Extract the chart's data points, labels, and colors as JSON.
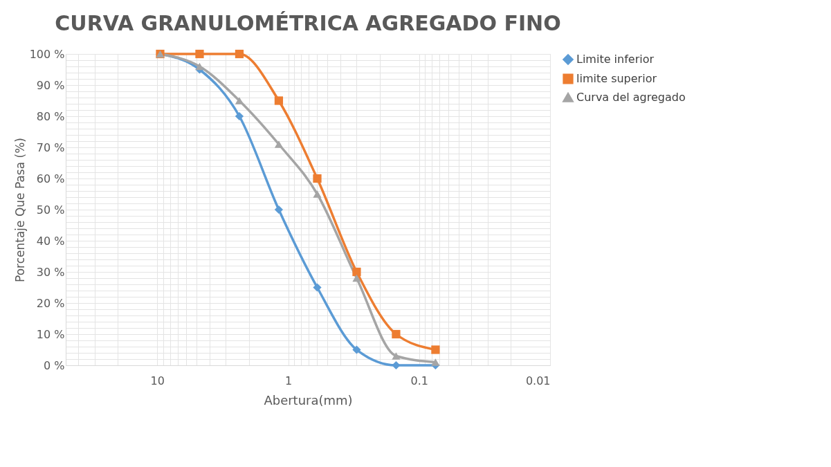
{
  "chart_data": {
    "type": "line",
    "title": "CURVA GRANULOMÉTRICA AGREGADO FINO",
    "xlabel": "Abertura(mm)",
    "ylabel": "Porcentaje Que Pasa (%)",
    "x": [
      9.5,
      4.75,
      2.36,
      1.18,
      0.6,
      0.3,
      0.15,
      0.075
    ],
    "series": [
      {
        "name": "Limite inferior",
        "color": "#5b9bd5",
        "marker": "diamond",
        "values": [
          100,
          95,
          80,
          50,
          25,
          5,
          0,
          0
        ]
      },
      {
        "name": "limite superior",
        "color": "#ed7d31",
        "marker": "square",
        "values": [
          100,
          100,
          100,
          85,
          60,
          30,
          10,
          5
        ]
      },
      {
        "name": "Curva del agregado",
        "color": "#a5a5a5",
        "marker": "triangle",
        "values": [
          100,
          96,
          85,
          71,
          55,
          28,
          3,
          1
        ]
      }
    ],
    "log": "x",
    "xlim": [
      50,
      0.01
    ],
    "xticks": [
      {
        "value": 50,
        "label": null
      },
      {
        "value": 40,
        "label": null
      },
      {
        "value": 30,
        "label": null
      },
      {
        "value": 20,
        "label": null
      },
      10,
      {
        "value": 9,
        "label": null
      },
      {
        "value": 8,
        "label": null
      },
      {
        "value": 7,
        "label": null
      },
      {
        "value": 6,
        "label": null
      },
      {
        "value": 5,
        "label": null
      },
      {
        "value": 4,
        "label": null
      },
      {
        "value": 3,
        "label": null
      },
      {
        "value": 2,
        "label": null
      },
      1,
      {
        "value": 0.9,
        "label": null
      },
      {
        "value": 0.8,
        "label": null
      },
      {
        "value": 0.7,
        "label": null
      },
      {
        "value": 0.6,
        "label": null
      },
      {
        "value": 0.5,
        "label": null
      },
      {
        "value": 0.4,
        "label": null
      },
      {
        "value": 0.3,
        "label": null
      },
      {
        "value": 0.2,
        "label": null
      },
      0.1,
      {
        "value": 0.09,
        "label": null
      },
      {
        "value": 0.08,
        "label": null
      },
      {
        "value": 0.07,
        "label": null
      },
      {
        "value": 0.06,
        "label": null
      },
      {
        "value": 0.05,
        "label": null
      },
      {
        "value": 0.04,
        "label": null
      },
      {
        "value": 0.03,
        "label": null
      },
      {
        "value": 0.02,
        "label": null
      },
      0.01
    ],
    "ylim": [
      0,
      100
    ],
    "yticks": [
      {
        "value": 0,
        "label": "0 %"
      },
      {
        "value": 2,
        "label": null
      },
      {
        "value": 4,
        "label": null
      },
      {
        "value": 6,
        "label": null
      },
      {
        "value": 8,
        "label": null
      },
      {
        "value": 10,
        "label": "10 %"
      },
      {
        "value": 12,
        "label": null
      },
      {
        "value": 14,
        "label": null
      },
      {
        "value": 16,
        "label": null
      },
      {
        "value": 18,
        "label": null
      },
      {
        "value": 20,
        "label": "20 %"
      },
      {
        "value": 22,
        "label": null
      },
      {
        "value": 24,
        "label": null
      },
      {
        "value": 26,
        "label": null
      },
      {
        "value": 28,
        "label": null
      },
      {
        "value": 30,
        "label": "30 %"
      },
      {
        "value": 32,
        "label": null
      },
      {
        "value": 34,
        "label": null
      },
      {
        "value": 36,
        "label": null
      },
      {
        "value": 38,
        "label": null
      },
      {
        "value": 40,
        "label": "40 %"
      },
      {
        "value": 42,
        "label": null
      },
      {
        "value": 44,
        "label": null
      },
      {
        "value": 46,
        "label": null
      },
      {
        "value": 48,
        "label": null
      },
      {
        "value": 50,
        "label": "50 %"
      },
      {
        "value": 52,
        "label": null
      },
      {
        "value": 54,
        "label": null
      },
      {
        "value": 56,
        "label": null
      },
      {
        "value": 58,
        "label": null
      },
      {
        "value": 60,
        "label": "60 %"
      },
      {
        "value": 62,
        "label": null
      },
      {
        "value": 64,
        "label": null
      },
      {
        "value": 66,
        "label": null
      },
      {
        "value": 68,
        "label": null
      },
      {
        "value": 70,
        "label": "70 %"
      },
      {
        "value": 72,
        "label": null
      },
      {
        "value": 74,
        "label": null
      },
      {
        "value": 76,
        "label": null
      },
      {
        "value": 78,
        "label": null
      },
      {
        "value": 80,
        "label": "80 %"
      },
      {
        "value": 82,
        "label": null
      },
      {
        "value": 84,
        "label": null
      },
      {
        "value": 86,
        "label": null
      },
      {
        "value": 88,
        "label": null
      },
      {
        "value": 90,
        "label": "90 %"
      },
      {
        "value": 92,
        "label": null
      },
      {
        "value": 94,
        "label": null
      },
      {
        "value": 96,
        "label": null
      },
      {
        "value": 98,
        "label": null
      },
      {
        "value": 100,
        "label": "100 %"
      }
    ],
    "grid": true,
    "legend": "right",
    "line_style": "solid"
  }
}
